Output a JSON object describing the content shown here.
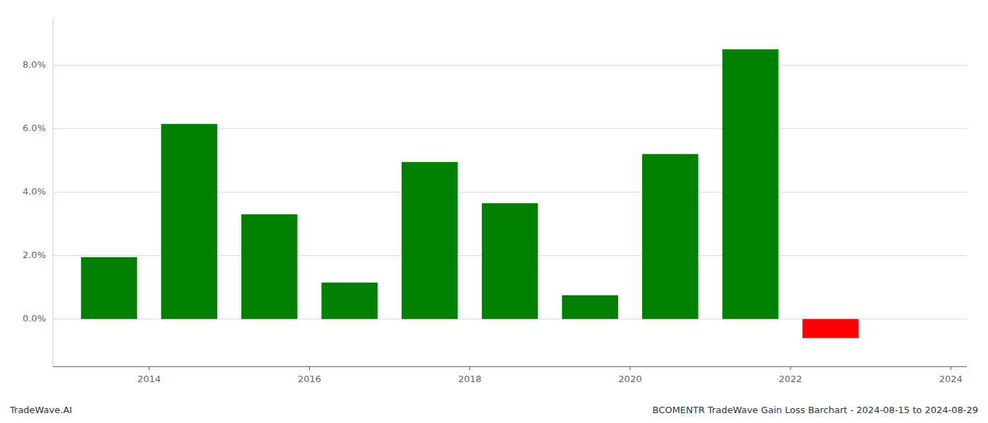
{
  "chart_data": {
    "type": "bar",
    "title": "BCOMENTR TradeWave Gain Loss Barchart - 2024-08-15 to 2024-08-29",
    "annotations": [
      "TradeWave.AI"
    ],
    "x": [
      2013.5,
      2014.5,
      2015.5,
      2016.5,
      2017.5,
      2018.5,
      2019.5,
      2020.5,
      2021.5,
      2022.5
    ],
    "values": [
      0.0195,
      0.0615,
      0.033,
      0.0115,
      0.0495,
      0.0365,
      0.0075,
      0.052,
      0.085,
      -0.006
    ],
    "colors": [
      "#008000",
      "#008000",
      "#008000",
      "#008000",
      "#008000",
      "#008000",
      "#008000",
      "#008000",
      "#008000",
      "#ff0000"
    ],
    "xlim": [
      2012.8,
      2024.2
    ],
    "xticks": [
      2014,
      2016,
      2018,
      2020,
      2022,
      2024
    ],
    "ylim": [
      -0.015,
      0.095
    ],
    "yticks": [
      {
        "value": 0.0,
        "label": "0.0%"
      },
      {
        "value": 0.02,
        "label": "2.0%"
      },
      {
        "value": 0.04,
        "label": "4.0%"
      },
      {
        "value": 0.06,
        "label": "6.0%"
      },
      {
        "value": 0.08,
        "label": "8.0%"
      }
    ],
    "grid": true
  }
}
